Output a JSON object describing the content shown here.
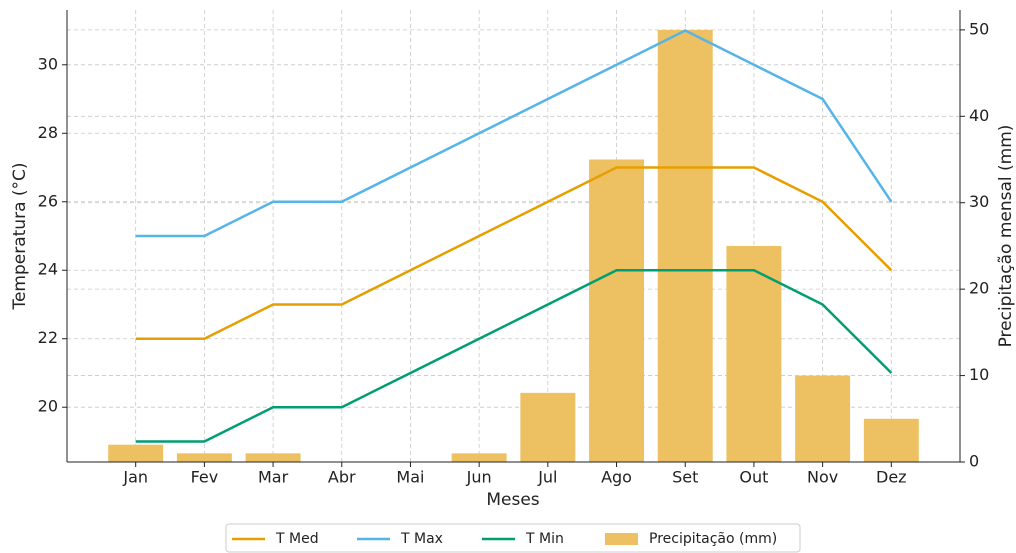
{
  "chart_data": {
    "type": "line",
    "xlabel": "Meses",
    "ylabel": "Temperatura (°C)",
    "y2label": "Precipitação mensal (mm)",
    "categories": [
      "Jan",
      "Fev",
      "Mar",
      "Abr",
      "Mai",
      "Jun",
      "Jul",
      "Ago",
      "Set",
      "Out",
      "Nov",
      "Dez"
    ],
    "series": [
      {
        "name": "T Med",
        "color": "#e69f00",
        "values": [
          22,
          22,
          23,
          23,
          24,
          25,
          26,
          27,
          27,
          27,
          26,
          24
        ]
      },
      {
        "name": "T Max",
        "color": "#56b4e9",
        "values": [
          25,
          25,
          26,
          26,
          27,
          28,
          29,
          30,
          31,
          30,
          29,
          26
        ]
      },
      {
        "name": "T Min",
        "color": "#009e73",
        "values": [
          19,
          19,
          20,
          20,
          21,
          22,
          23,
          24,
          24,
          24,
          23,
          21
        ]
      },
      {
        "name": "Precipitação (mm)",
        "color": "#edc061",
        "type": "bar",
        "axis": "y2",
        "values": [
          2,
          1,
          1,
          0,
          0,
          1,
          8,
          35,
          50,
          25,
          10,
          5
        ]
      }
    ],
    "ylim": [
      18.4,
      31.6
    ],
    "yticks": [
      20,
      22,
      24,
      26,
      28,
      30
    ],
    "y2lim": [
      0,
      52.3
    ],
    "y2ticks": [
      0,
      10,
      20,
      30,
      40,
      50
    ],
    "grid": true,
    "legend": "bottom"
  }
}
